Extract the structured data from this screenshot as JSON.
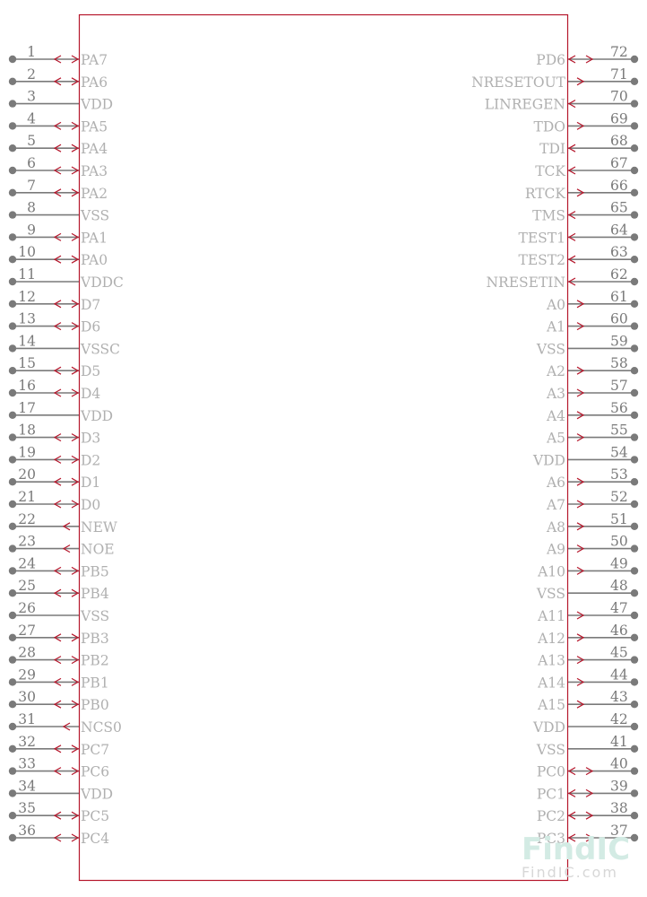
{
  "left_pins": [
    {
      "num": "1",
      "name": "PA7",
      "dir": "bidir"
    },
    {
      "num": "2",
      "name": "PA6",
      "dir": "bidir"
    },
    {
      "num": "3",
      "name": "VDD",
      "dir": "power"
    },
    {
      "num": "4",
      "name": "PA5",
      "dir": "bidir"
    },
    {
      "num": "5",
      "name": "PA4",
      "dir": "bidir"
    },
    {
      "num": "6",
      "name": "PA3",
      "dir": "bidir"
    },
    {
      "num": "7",
      "name": "PA2",
      "dir": "bidir"
    },
    {
      "num": "8",
      "name": "VSS",
      "dir": "power"
    },
    {
      "num": "9",
      "name": "PA1",
      "dir": "bidir"
    },
    {
      "num": "10",
      "name": "PA0",
      "dir": "bidir"
    },
    {
      "num": "11",
      "name": "VDDC",
      "dir": "power"
    },
    {
      "num": "12",
      "name": "D7",
      "dir": "bidir"
    },
    {
      "num": "13",
      "name": "D6",
      "dir": "bidir"
    },
    {
      "num": "14",
      "name": "VSSC",
      "dir": "power"
    },
    {
      "num": "15",
      "name": "D5",
      "dir": "bidir"
    },
    {
      "num": "16",
      "name": "D4",
      "dir": "bidir"
    },
    {
      "num": "17",
      "name": "VDD",
      "dir": "power"
    },
    {
      "num": "18",
      "name": "D3",
      "dir": "bidir"
    },
    {
      "num": "19",
      "name": "D2",
      "dir": "bidir"
    },
    {
      "num": "20",
      "name": "D1",
      "dir": "bidir"
    },
    {
      "num": "21",
      "name": "D0",
      "dir": "bidir"
    },
    {
      "num": "22",
      "name": "NEW",
      "dir": "out"
    },
    {
      "num": "23",
      "name": "NOE",
      "dir": "out"
    },
    {
      "num": "24",
      "name": "PB5",
      "dir": "bidir"
    },
    {
      "num": "25",
      "name": "PB4",
      "dir": "bidir"
    },
    {
      "num": "26",
      "name": "VSS",
      "dir": "power"
    },
    {
      "num": "27",
      "name": "PB3",
      "dir": "bidir"
    },
    {
      "num": "28",
      "name": "PB2",
      "dir": "bidir"
    },
    {
      "num": "29",
      "name": "PB1",
      "dir": "bidir"
    },
    {
      "num": "30",
      "name": "PB0",
      "dir": "bidir"
    },
    {
      "num": "31",
      "name": "NCS0",
      "dir": "out"
    },
    {
      "num": "32",
      "name": "PC7",
      "dir": "bidir"
    },
    {
      "num": "33",
      "name": "PC6",
      "dir": "bidir"
    },
    {
      "num": "34",
      "name": "VDD",
      "dir": "power"
    },
    {
      "num": "35",
      "name": "PC5",
      "dir": "bidir"
    },
    {
      "num": "36",
      "name": "PC4",
      "dir": "bidir"
    }
  ],
  "right_pins": [
    {
      "num": "72",
      "name": "PD6",
      "dir": "bidir"
    },
    {
      "num": "71",
      "name": "NRESETOUT",
      "dir": "out"
    },
    {
      "num": "70",
      "name": "LINREGEN",
      "dir": "in"
    },
    {
      "num": "69",
      "name": "TDO",
      "dir": "out"
    },
    {
      "num": "68",
      "name": "TDI",
      "dir": "in"
    },
    {
      "num": "67",
      "name": "TCK",
      "dir": "in"
    },
    {
      "num": "66",
      "name": "RTCK",
      "dir": "out"
    },
    {
      "num": "65",
      "name": "TMS",
      "dir": "in"
    },
    {
      "num": "64",
      "name": "TEST1",
      "dir": "in"
    },
    {
      "num": "63",
      "name": "TEST2",
      "dir": "in"
    },
    {
      "num": "62",
      "name": "NRESETIN",
      "dir": "in"
    },
    {
      "num": "61",
      "name": "A0",
      "dir": "out"
    },
    {
      "num": "60",
      "name": "A1",
      "dir": "out"
    },
    {
      "num": "59",
      "name": "VSS",
      "dir": "power"
    },
    {
      "num": "58",
      "name": "A2",
      "dir": "out"
    },
    {
      "num": "57",
      "name": "A3",
      "dir": "out"
    },
    {
      "num": "56",
      "name": "A4",
      "dir": "out"
    },
    {
      "num": "55",
      "name": "A5",
      "dir": "out"
    },
    {
      "num": "54",
      "name": "VDD",
      "dir": "power"
    },
    {
      "num": "53",
      "name": "A6",
      "dir": "out"
    },
    {
      "num": "52",
      "name": "A7",
      "dir": "out"
    },
    {
      "num": "51",
      "name": "A8",
      "dir": "out"
    },
    {
      "num": "50",
      "name": "A9",
      "dir": "out"
    },
    {
      "num": "49",
      "name": "A10",
      "dir": "out"
    },
    {
      "num": "48",
      "name": "VSS",
      "dir": "power"
    },
    {
      "num": "47",
      "name": "A11",
      "dir": "out"
    },
    {
      "num": "46",
      "name": "A12",
      "dir": "out"
    },
    {
      "num": "45",
      "name": "A13",
      "dir": "out"
    },
    {
      "num": "44",
      "name": "A14",
      "dir": "out"
    },
    {
      "num": "43",
      "name": "A15",
      "dir": "out"
    },
    {
      "num": "42",
      "name": "VDD",
      "dir": "power"
    },
    {
      "num": "41",
      "name": "VSS",
      "dir": "power"
    },
    {
      "num": "40",
      "name": "PC0",
      "dir": "bidir"
    },
    {
      "num": "39",
      "name": "PC1",
      "dir": "bidir"
    },
    {
      "num": "38",
      "name": "PC2",
      "dir": "bidir"
    },
    {
      "num": "37",
      "name": "PC3",
      "dir": "bidir"
    }
  ],
  "watermark": {
    "brand": "FindIC",
    "site": "FindIC.com"
  },
  "colors": {
    "body_outline": "#b5162b",
    "pin_line": "#7a7a7a",
    "pin_name": "#b0b0b0",
    "watermark": "#d3ebe4"
  }
}
